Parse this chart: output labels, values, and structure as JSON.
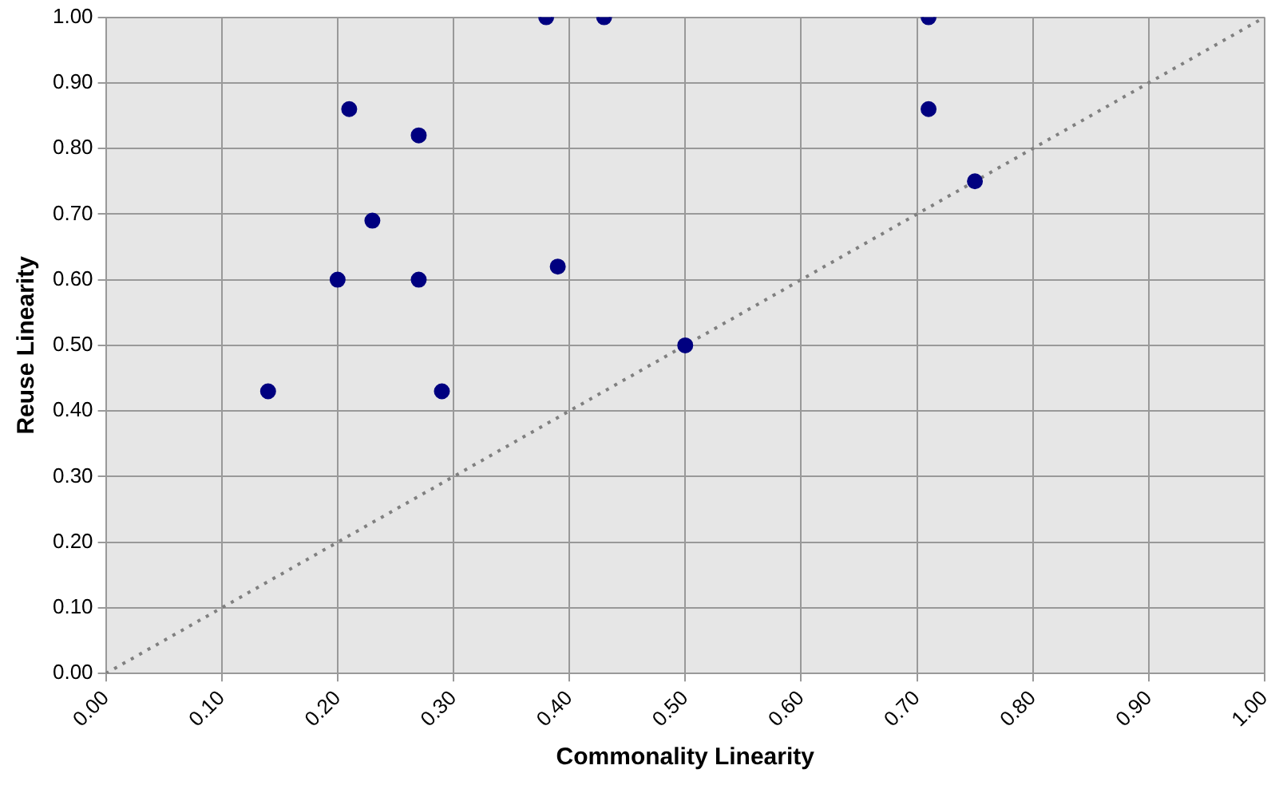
{
  "chart_data": {
    "type": "scatter",
    "xlabel": "Commonality Linearity",
    "ylabel": "Reuse Linearity",
    "series": [
      {
        "color": "#000080",
        "marker": "circle",
        "x": [
          0.14,
          0.2,
          0.21,
          0.23,
          0.27,
          0.27,
          0.29,
          0.38,
          0.43,
          0.39,
          0.5,
          0.71,
          0.71,
          0.75
        ],
        "values": [
          0.43,
          0.6,
          0.86,
          0.69,
          0.6,
          0.82,
          0.43,
          1.0,
          1.0,
          0.62,
          0.5,
          1.0,
          0.86,
          0.75
        ]
      },
      {
        "type": "line",
        "color": "#808080",
        "marker": "none",
        "line_style": "dotted",
        "x": [
          0,
          1
        ],
        "values": [
          0,
          1
        ]
      }
    ],
    "xlim": [
      0,
      1
    ],
    "ylim": [
      0,
      1
    ],
    "xticks": [
      {
        "value": 0,
        "label": "0.00"
      },
      {
        "value": 0.1,
        "label": "0.10"
      },
      {
        "value": 0.2,
        "label": "0.20"
      },
      {
        "value": 0.3,
        "label": "0.30"
      },
      {
        "value": 0.4,
        "label": "0.40"
      },
      {
        "value": 0.5,
        "label": "0.50"
      },
      {
        "value": 0.6,
        "label": "0.60"
      },
      {
        "value": 0.7,
        "label": "0.70"
      },
      {
        "value": 0.8,
        "label": "0.80"
      },
      {
        "value": 0.9,
        "label": "0.90"
      },
      {
        "value": 1,
        "label": "1.00"
      }
    ],
    "yticks": [
      {
        "value": 0,
        "label": "0.00"
      },
      {
        "value": 0.1,
        "label": "0.10"
      },
      {
        "value": 0.2,
        "label": "0.20"
      },
      {
        "value": 0.3,
        "label": "0.30"
      },
      {
        "value": 0.4,
        "label": "0.40"
      },
      {
        "value": 0.5,
        "label": "0.50"
      },
      {
        "value": 0.6,
        "label": "0.60"
      },
      {
        "value": 0.7,
        "label": "0.70"
      },
      {
        "value": 0.8,
        "label": "0.80"
      },
      {
        "value": 0.9,
        "label": "0.90"
      },
      {
        "value": 1,
        "label": "1.00"
      }
    ],
    "grid": true,
    "legend": false
  }
}
